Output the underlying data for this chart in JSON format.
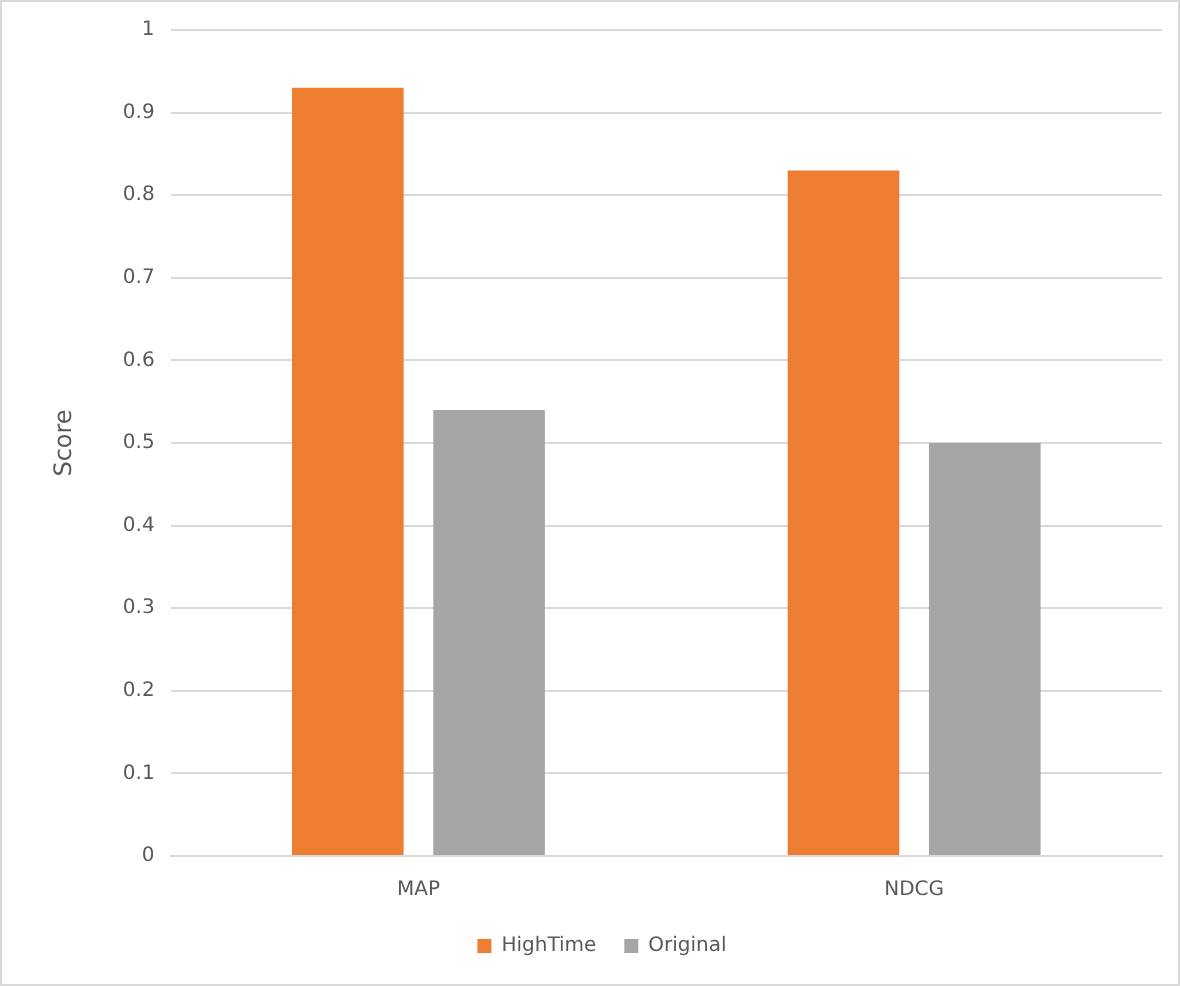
{
  "chart_data": {
    "type": "bar",
    "ylabel": "Score",
    "categories": [
      "MAP",
      "NDCG"
    ],
    "series": [
      {
        "name": "HighTime",
        "color": "#ed7d31",
        "values": [
          0.93,
          0.83
        ]
      },
      {
        "name": "Original",
        "color": "#a5a5a5",
        "values": [
          0.54,
          0.5
        ]
      }
    ],
    "ylim": [
      0,
      1
    ],
    "yticks": [
      0,
      0.1,
      0.2,
      0.3,
      0.4,
      0.5,
      0.6,
      0.7,
      0.8,
      0.9,
      1
    ],
    "grid": "y",
    "legend": "bottom"
  }
}
